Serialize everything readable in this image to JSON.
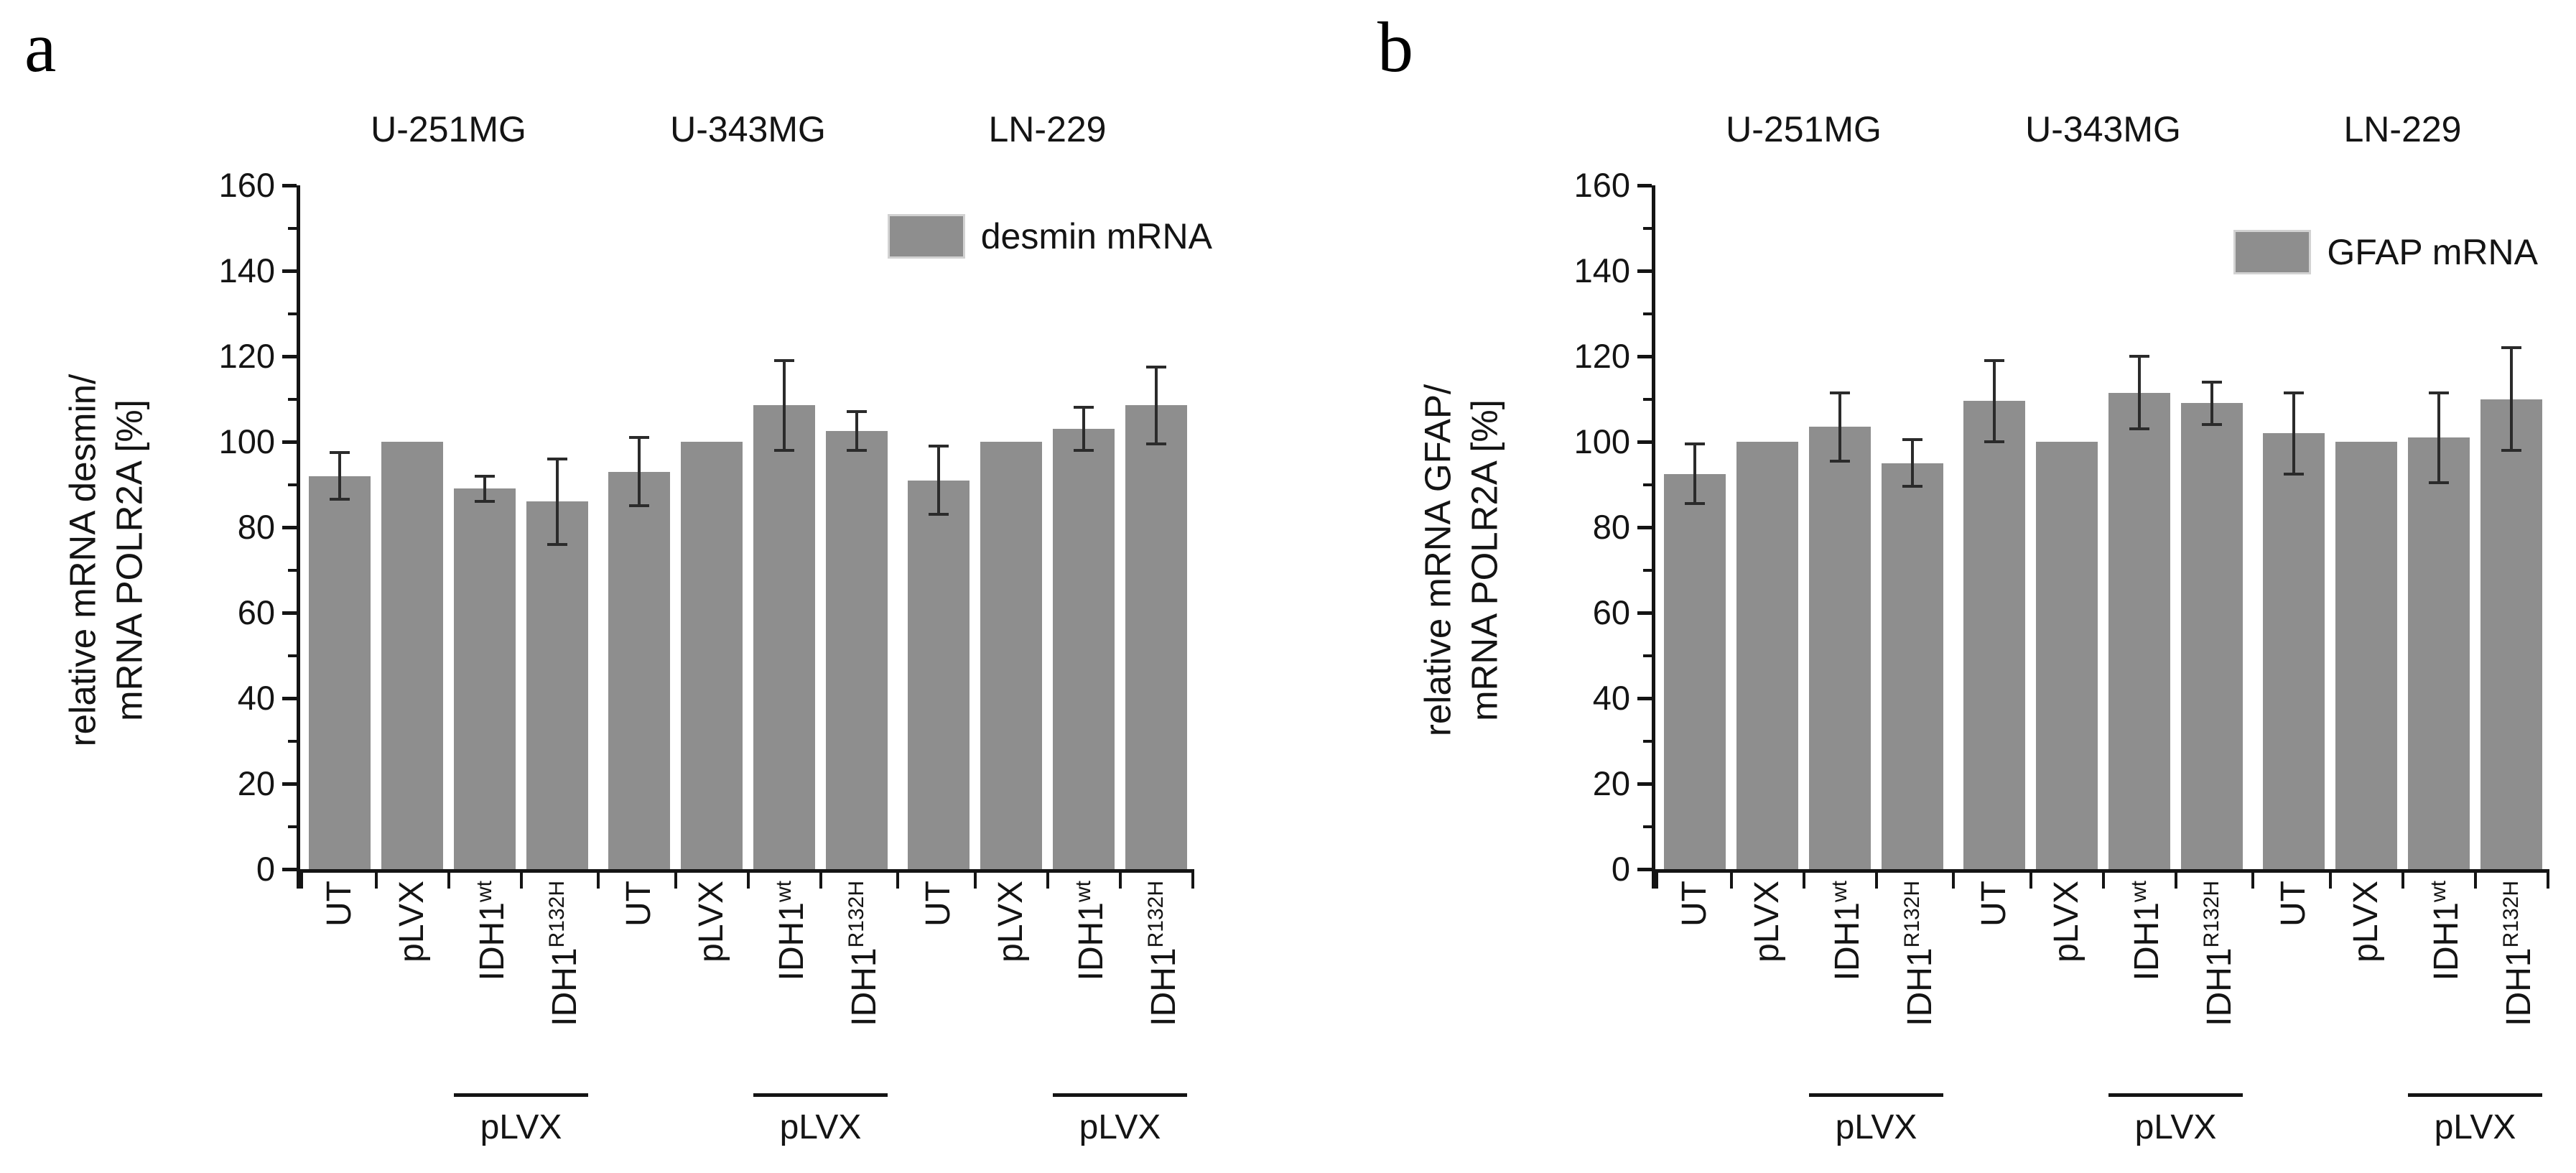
{
  "colors": {
    "bar": "#8e8e8e",
    "error_bar": "#2b2b2b",
    "axis": "#141414",
    "legend_swatch_border": "#d2d2d2",
    "background": "#ffffff"
  },
  "chart_data": [
    {
      "type": "bar",
      "panel": "a",
      "legend": [
        "desmin mRNA"
      ],
      "legend_position": "top-right",
      "ylabel_line1": "relative mRNA desmin/",
      "ylabel_line2": "mRNA POLR2A [%]",
      "ylim": [
        0,
        160
      ],
      "ytick_step": 20,
      "ytick_labels": [
        "0",
        "20",
        "40",
        "60",
        "80",
        "100",
        "120",
        "140",
        "160"
      ],
      "grid": false,
      "groups": [
        "U-251MG",
        "U-343MG",
        "LN-229"
      ],
      "categories": [
        "UT",
        "pLVX",
        "IDH1wt",
        "IDH1R132H"
      ],
      "category_display": [
        {
          "base": "UT",
          "sup": ""
        },
        {
          "base": "pLVX",
          "sup": ""
        },
        {
          "base": "IDH1",
          "sup": "wt"
        },
        {
          "base": "IDH1",
          "sup": "R132H"
        }
      ],
      "bracket_label": "pLVX",
      "series": [
        {
          "group": "U-251MG",
          "values": [
            92,
            100,
            89,
            86
          ],
          "errors": [
            5.5,
            0,
            3,
            10
          ]
        },
        {
          "group": "U-343MG",
          "values": [
            93,
            100,
            108.5,
            102.5
          ],
          "errors": [
            8,
            0,
            10.5,
            4.5
          ]
        },
        {
          "group": "LN-229",
          "values": [
            91,
            100,
            103,
            108.5
          ],
          "errors": [
            8,
            0,
            5,
            9
          ]
        }
      ]
    },
    {
      "type": "bar",
      "panel": "b",
      "legend": [
        "GFAP mRNA"
      ],
      "legend_position": "top-right",
      "ylabel_line1": "relative mRNA GFAP/",
      "ylabel_line2": "mRNA POLR2A [%]",
      "ylim": [
        0,
        160
      ],
      "ytick_step": 20,
      "ytick_labels": [
        "0",
        "20",
        "40",
        "60",
        "80",
        "100",
        "120",
        "140",
        "160"
      ],
      "grid": false,
      "groups": [
        "U-251MG",
        "U-343MG",
        "LN-229"
      ],
      "categories": [
        "UT",
        "pLVX",
        "IDH1wt",
        "IDH1R132H"
      ],
      "category_display": [
        {
          "base": "UT",
          "sup": ""
        },
        {
          "base": "pLVX",
          "sup": ""
        },
        {
          "base": "IDH1",
          "sup": "wt"
        },
        {
          "base": "IDH1",
          "sup": "R132H"
        }
      ],
      "bracket_label": "pLVX",
      "series": [
        {
          "group": "U-251MG",
          "values": [
            92.5,
            100,
            103.5,
            95
          ],
          "errors": [
            7,
            0,
            8,
            5.5
          ]
        },
        {
          "group": "U-343MG",
          "values": [
            109.5,
            100,
            111.5,
            109
          ],
          "errors": [
            9.5,
            0,
            8.5,
            5
          ]
        },
        {
          "group": "LN-229",
          "values": [
            102,
            100,
            101,
            110
          ],
          "errors": [
            9.5,
            0,
            10.5,
            12
          ]
        }
      ]
    }
  ]
}
